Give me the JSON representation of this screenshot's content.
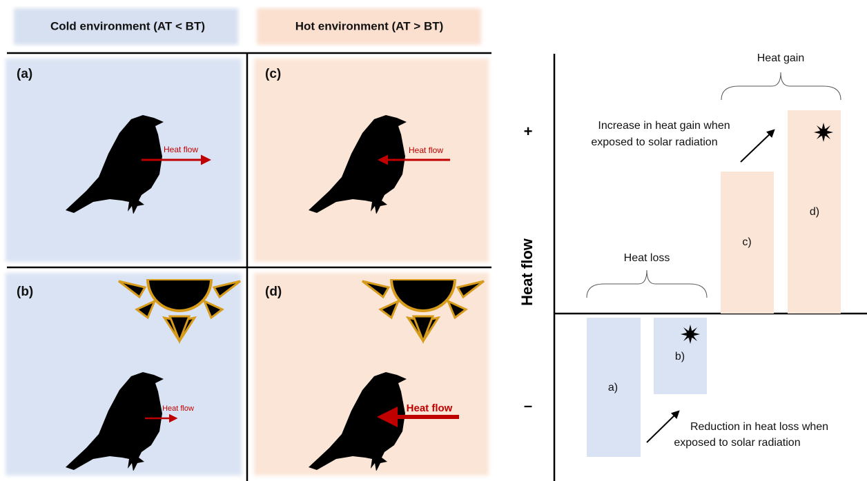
{
  "header": {
    "cold": "Cold environment (AT < BT)",
    "hot": "Hot environment (AT > BT)"
  },
  "panels": [
    {
      "label": "(a)",
      "arrow_label": "Heat flow"
    },
    {
      "label": "(b)",
      "arrow_label": "Heat flow"
    },
    {
      "label": "(c)",
      "arrow_label": "Heat flow"
    },
    {
      "label": "(d)",
      "arrow_label": "Heat flow"
    }
  ],
  "graph": {
    "axis_label": "Heat flow",
    "plus": "+",
    "minus": "–",
    "bars": [
      "a)",
      "b)",
      "c)",
      "d)"
    ],
    "heat_gain": "Heat gain",
    "heat_loss": "Heat loss",
    "gain_note": [
      "Increase in heat gain when",
      "exposed to solar radiation"
    ],
    "loss_note": [
      "Reduction in heat loss when",
      "exposed to solar radiation"
    ]
  }
}
